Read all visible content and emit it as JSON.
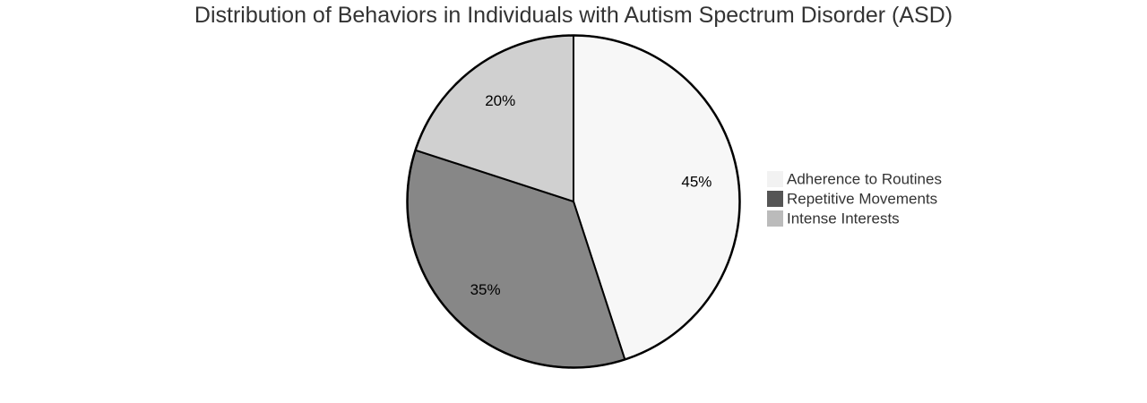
{
  "chart_data": {
    "type": "pie",
    "title": "Distribution of Behaviors in Individuals with Autism Spectrum Disorder (ASD)",
    "slices": [
      {
        "label": "Adherence to Routines",
        "value": 45,
        "display": "45%",
        "color": "#f7f7f7",
        "legend_color": "#f2f2f2"
      },
      {
        "label": "Repetitive Movements",
        "value": 35,
        "display": "35%",
        "color": "#878787",
        "legend_color": "#555555"
      },
      {
        "label": "Intense Interests",
        "value": 20,
        "display": "20%",
        "color": "#d0d0d0",
        "legend_color": "#bbbbbb"
      }
    ],
    "legend_position": "right"
  }
}
